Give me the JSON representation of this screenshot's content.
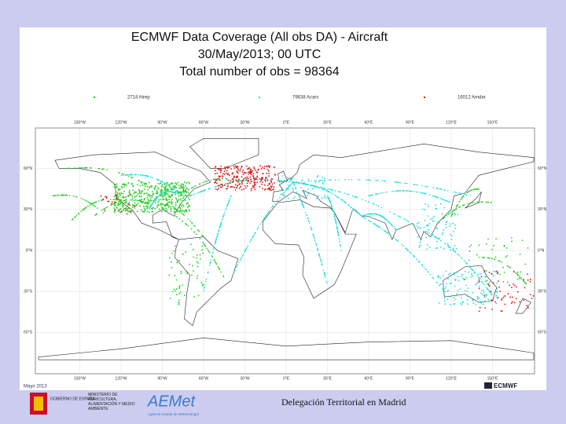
{
  "slide": {
    "title_lines": [
      "ECMWF Data Coverage (All obs DA) - Aircraft",
      "30/May/2013; 00 UTC",
      "Total number of obs = 98364"
    ],
    "legend": [
      {
        "name": "2714 Airep",
        "color": "#22cc22"
      },
      {
        "name": "79638 Acars",
        "color": "#22dddd"
      },
      {
        "name": "16012 Amdar",
        "color": "#dd1111"
      }
    ],
    "map": {
      "lon_ticks": [
        {
          "value": -150,
          "label": "150°W"
        },
        {
          "value": -120,
          "label": "120°W"
        },
        {
          "value": -90,
          "label": "90°W"
        },
        {
          "value": -60,
          "label": "60°W"
        },
        {
          "value": -30,
          "label": "30°W"
        },
        {
          "value": 0,
          "label": "0°E"
        },
        {
          "value": 30,
          "label": "30°E"
        },
        {
          "value": 60,
          "label": "60°E"
        },
        {
          "value": 90,
          "label": "90°E"
        },
        {
          "value": 120,
          "label": "120°E"
        },
        {
          "value": 150,
          "label": "150°E"
        }
      ],
      "lat_ticks": [
        {
          "value": 60,
          "label": "60°N"
        },
        {
          "value": 30,
          "label": "30°N"
        },
        {
          "value": 0,
          "label": "0°N"
        },
        {
          "value": -30,
          "label": "30°S"
        },
        {
          "value": -60,
          "label": "60°S"
        }
      ]
    },
    "footer": {
      "date": "Mayo 2013",
      "gov": "GOBIERNO DE ESPAÑA",
      "ministry": "MINISTERIO DE AGRICULTURA, ALIMENTACIÓN Y MEDIO AMBIENTE",
      "agency": "AEMet",
      "agency_full": "Agencia Estatal de Meteorología",
      "office": "Delegación Territorial en Madrid",
      "ecmwf": "ECMWF"
    }
  }
}
